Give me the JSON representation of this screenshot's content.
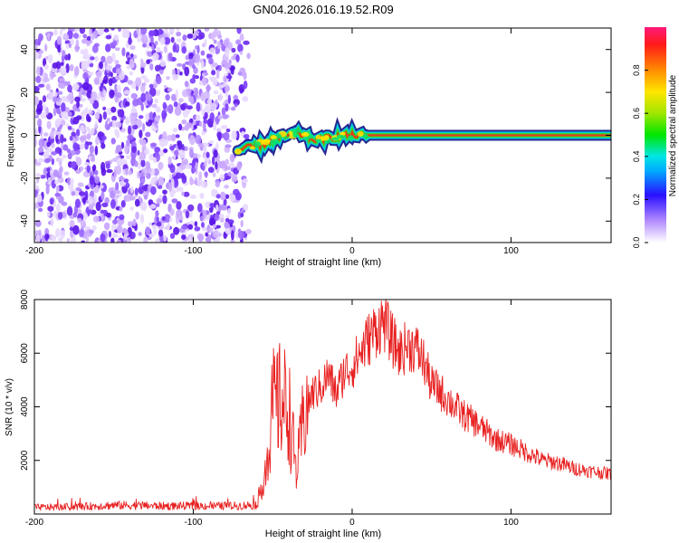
{
  "title": "GN04.2026.016.19.52.R09",
  "colors": {
    "snr_line": "#e82020",
    "speckle": "#7a3cff",
    "axis": "#000000"
  },
  "colorbar": {
    "label": "Normalized spectral amplitude",
    "ticks": [
      "0.0",
      "0.2",
      "0.4",
      "0.6",
      "0.8"
    ],
    "tick_values": [
      0.0,
      0.2,
      0.4,
      0.6,
      0.8
    ],
    "range": [
      0,
      1
    ]
  },
  "chart_data": [
    {
      "type": "heatmap",
      "title": "GN04.2026.016.19.52.R09",
      "xlabel": "Height of straight line (km)",
      "ylabel": "Frequency (Hz)",
      "xlim": [
        -200,
        163
      ],
      "ylim": [
        -50,
        50
      ],
      "x_ticks": [
        -200,
        -100,
        0,
        100
      ],
      "x_tick_labels": [
        "-200",
        "-100",
        "0",
        "100"
      ],
      "y_ticks": [
        -40,
        -20,
        0,
        20,
        40
      ],
      "y_tick_labels": [
        "-40",
        "-20",
        "0",
        "20",
        "40"
      ],
      "noise_region_x": [
        -200,
        -65
      ],
      "signal_track": {
        "x": [
          -72,
          -66,
          -60,
          -55,
          -50,
          -45,
          -40,
          -35,
          -30,
          -25,
          -20,
          -15,
          -10,
          -5,
          0,
          5,
          163
        ],
        "y": [
          -7,
          -6,
          -5,
          -4,
          -2,
          -1,
          0,
          1,
          0,
          -2,
          -2,
          -1,
          -1,
          0,
          0,
          0,
          0
        ]
      }
    },
    {
      "type": "line",
      "xlabel": "Height of straight line (km)",
      "ylabel": "SNR (10 * v/v)",
      "xlim": [
        -200,
        163
      ],
      "ylim": [
        0,
        8000
      ],
      "x_ticks": [
        -200,
        -100,
        0,
        100
      ],
      "x_tick_labels": [
        "-200",
        "-100",
        "0",
        "100"
      ],
      "y_ticks": [
        2000,
        4000,
        6000,
        8000
      ],
      "y_tick_labels": [
        "2000",
        "4000",
        "6000",
        "8000"
      ],
      "series": [
        {
          "name": "SNR",
          "x": [
            -200,
            -180,
            -160,
            -150,
            -120,
            -90,
            -70,
            -60,
            -55,
            -50,
            -45,
            -40,
            -35,
            -30,
            -25,
            -20,
            -15,
            -10,
            -5,
            0,
            5,
            10,
            15,
            20,
            25,
            30,
            35,
            40,
            45,
            50,
            55,
            60,
            70,
            80,
            90,
            100,
            110,
            120,
            130,
            140,
            150,
            163
          ],
          "y": [
            250,
            260,
            300,
            330,
            300,
            300,
            310,
            350,
            1500,
            4000,
            4200,
            4000,
            1500,
            3800,
            4500,
            4700,
            5200,
            4500,
            5300,
            5500,
            6000,
            6500,
            6900,
            7200,
            6500,
            6000,
            6300,
            6200,
            5700,
            4800,
            4600,
            4300,
            3700,
            3300,
            2800,
            2600,
            2300,
            2000,
            1900,
            1700,
            1600,
            1500
          ]
        }
      ]
    }
  ]
}
